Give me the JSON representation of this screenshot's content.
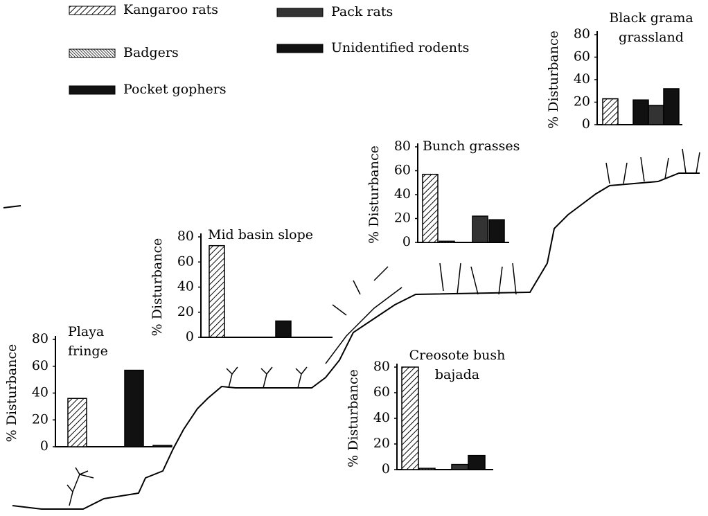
{
  "legend": [
    {
      "name": "Kangaroo rats",
      "fill": "hatch"
    },
    {
      "name": "Badgers",
      "fill": "hatch-dense"
    },
    {
      "name": "Pocket gophers",
      "fill": "#111111"
    },
    {
      "name": "Pack rats",
      "fill": "#333333"
    },
    {
      "name": "Unidentified rodents",
      "fill": "#111111"
    }
  ],
  "chart_data": [
    {
      "type": "bar",
      "title": [
        "Playa",
        "fringe"
      ],
      "ylabel": "% Disturbance",
      "values": [
        36,
        0,
        57,
        1,
        0
      ],
      "ylim": [
        0,
        80
      ],
      "yticks": [
        0,
        20,
        40,
        60,
        80
      ]
    },
    {
      "type": "bar",
      "title": [
        "Mid basin slope"
      ],
      "ylabel": "% Disturbance",
      "values": [
        73,
        0,
        0,
        0,
        13
      ],
      "ylim": [
        0,
        80
      ],
      "yticks": [
        0,
        20,
        40,
        60,
        80
      ]
    },
    {
      "type": "bar",
      "title": [
        "Bunch grasses"
      ],
      "ylabel": "% Disturbance",
      "values": [
        57,
        1,
        0,
        22,
        19
      ],
      "ylim": [
        0,
        80
      ],
      "yticks": [
        0,
        20,
        40,
        60,
        80
      ]
    },
    {
      "type": "bar",
      "title": [
        "Black grama",
        "grassland"
      ],
      "ylabel": "% Disturbance",
      "values": [
        23,
        0,
        22,
        17,
        32
      ],
      "ylim": [
        0,
        80
      ],
      "yticks": [
        0,
        20,
        40,
        60,
        80
      ]
    },
    {
      "type": "bar",
      "title": [
        "Creosote bush",
        "bajada"
      ],
      "ylabel": "% Disturbance",
      "values": [
        80,
        1,
        0,
        4,
        11
      ],
      "ylim": [
        0,
        80
      ],
      "yticks": [
        0,
        20,
        40,
        60,
        80
      ]
    }
  ]
}
